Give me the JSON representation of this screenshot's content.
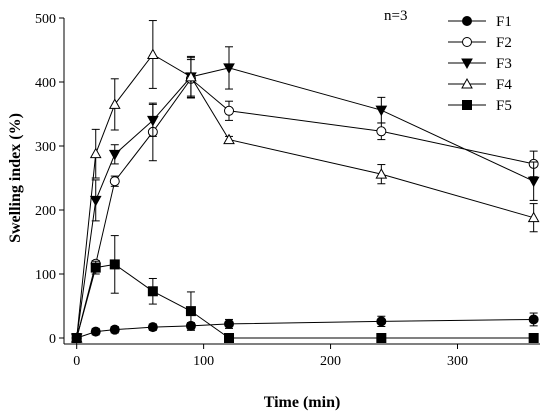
{
  "chart_data": {
    "type": "line",
    "title": "",
    "xlabel": "Time (min)",
    "ylabel": "Swelling index (%)",
    "xlim": [
      -10,
      365
    ],
    "ylim": [
      0,
      500
    ],
    "xticks": [
      0,
      100,
      200,
      300
    ],
    "yticks": [
      0,
      100,
      200,
      300,
      400,
      500
    ],
    "annotation": "n=3",
    "legend_position": "top-right",
    "series": [
      {
        "name": "F1",
        "marker": "circle-filled",
        "x": [
          0,
          15,
          30,
          60,
          90,
          120,
          240,
          360
        ],
        "y": [
          0,
          10,
          13,
          17,
          19,
          22,
          26,
          29
        ],
        "err": [
          0,
          5,
          5,
          5,
          5,
          7,
          8,
          10
        ]
      },
      {
        "name": "F2",
        "marker": "circle-open",
        "x": [
          0,
          15,
          30,
          60,
          90,
          120,
          240,
          360
        ],
        "y": [
          0,
          116,
          245,
          322,
          405,
          355,
          323,
          272
        ],
        "err": [
          0,
          5,
          8,
          45,
          30,
          15,
          13,
          20
        ]
      },
      {
        "name": "F3",
        "marker": "triangle-down-filled",
        "x": [
          0,
          15,
          30,
          60,
          90,
          120,
          240,
          360
        ],
        "y": [
          0,
          215,
          287,
          340,
          408,
          422,
          356,
          245
        ],
        "err": [
          0,
          32,
          15,
          25,
          32,
          33,
          20,
          30
        ]
      },
      {
        "name": "F4",
        "marker": "triangle-up-open",
        "x": [
          0,
          15,
          30,
          60,
          90,
          120,
          240,
          360
        ],
        "y": [
          0,
          288,
          365,
          443,
          408,
          310,
          256,
          188
        ],
        "err": [
          0,
          38,
          40,
          53,
          30,
          5,
          15,
          22
        ]
      },
      {
        "name": "F5",
        "marker": "square-filled",
        "x": [
          0,
          15,
          30,
          60,
          90,
          120,
          240,
          360
        ],
        "y": [
          0,
          110,
          115,
          73,
          42,
          0,
          0,
          0
        ],
        "err": [
          0,
          10,
          45,
          20,
          30,
          0,
          0,
          0
        ]
      }
    ]
  }
}
